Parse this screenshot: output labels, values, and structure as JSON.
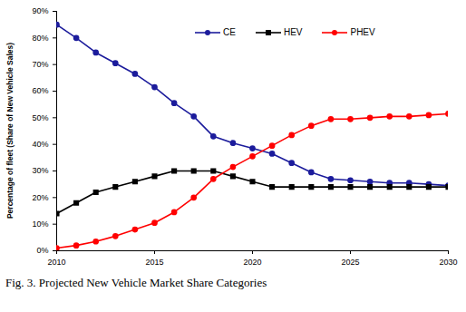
{
  "chart_data": {
    "type": "line",
    "caption": "Fig. 3. Projected New Vehicle Market Share Categories",
    "y_label": "Percentage of fleet (Share of New Vehicle Sales)",
    "x": [
      2010,
      2011,
      2012,
      2013,
      2014,
      2015,
      2016,
      2017,
      2018,
      2019,
      2020,
      2021,
      2022,
      2023,
      2024,
      2025,
      2026,
      2027,
      2028,
      2029,
      2030
    ],
    "series": [
      {
        "name": "CE",
        "color": "#1c1c9c",
        "marker": "circle",
        "values": [
          85,
          80,
          74.5,
          70.5,
          66.5,
          61.5,
          55.5,
          50.5,
          43,
          40.5,
          38.5,
          36.5,
          33,
          29.5,
          27,
          26.5,
          26,
          25.5,
          25.5,
          25,
          24.5
        ]
      },
      {
        "name": "HEV",
        "color": "#000000",
        "marker": "square",
        "values": [
          14,
          18,
          22,
          24,
          26,
          28,
          30,
          30,
          30,
          28,
          26,
          24,
          24,
          24,
          24,
          24,
          24,
          24,
          24,
          24,
          24
        ]
      },
      {
        "name": "PHEV",
        "color": "#ff0000",
        "marker": "circle",
        "values": [
          1,
          2,
          3.5,
          5.5,
          8,
          10.5,
          14.5,
          20,
          27,
          31.5,
          35.5,
          39.5,
          43.5,
          47,
          49.5,
          49.5,
          50,
          50.5,
          50.5,
          51,
          51.5
        ]
      }
    ],
    "xlim": [
      2010,
      2030
    ],
    "xticks": [
      2010,
      2015,
      2020,
      2025,
      2030
    ],
    "ylim": [
      0,
      90
    ],
    "yticks": [
      {
        "value": 0,
        "label": "0%"
      },
      {
        "value": 10,
        "label": "10%"
      },
      {
        "value": 20,
        "label": "20%"
      },
      {
        "value": 30,
        "label": "30%"
      },
      {
        "value": 40,
        "label": "40%"
      },
      {
        "value": 50,
        "label": "50%"
      },
      {
        "value": 60,
        "label": "60%"
      },
      {
        "value": 70,
        "label": "70%"
      },
      {
        "value": 80,
        "label": "80%"
      },
      {
        "value": 90,
        "label": "90%"
      }
    ],
    "grid": false,
    "legend": "top"
  }
}
